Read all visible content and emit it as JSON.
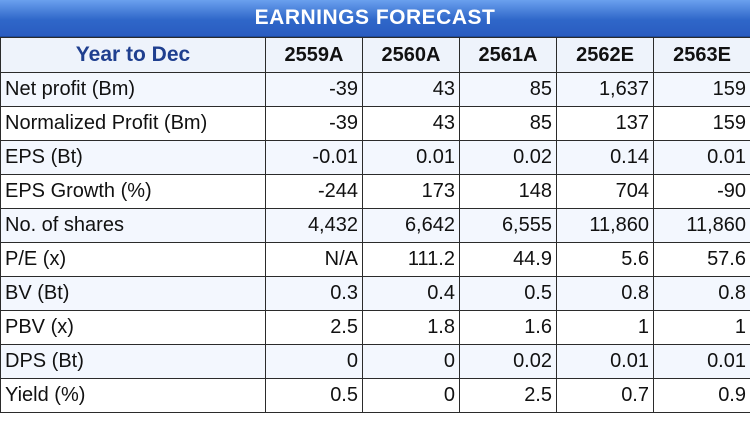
{
  "title": "EARNINGS FORECAST",
  "header": {
    "label": "Year to Dec",
    "years": [
      "2559A",
      "2560A",
      "2561A",
      "2562E",
      "2563E"
    ]
  },
  "rows": [
    {
      "label": "Net profit (Bm)",
      "values": [
        "-39",
        "43",
        "85",
        "1,637",
        "159"
      ]
    },
    {
      "label": "Normalized Profit (Bm)",
      "values": [
        "-39",
        "43",
        "85",
        "137",
        "159"
      ]
    },
    {
      "label": "EPS (Bt)",
      "values": [
        "-0.01",
        "0.01",
        "0.02",
        "0.14",
        "0.01"
      ]
    },
    {
      "label": "EPS Growth (%)",
      "values": [
        "-244",
        "173",
        "148",
        "704",
        "-90"
      ]
    },
    {
      "label": "No. of shares",
      "values": [
        "4,432",
        "6,642",
        "6,555",
        "11,860",
        "11,860"
      ]
    },
    {
      "label": "P/E (x)",
      "values": [
        "N/A",
        "111.2",
        "44.9",
        "5.6",
        "57.6"
      ]
    },
    {
      "label": "BV (Bt)",
      "values": [
        "0.3",
        "0.4",
        "0.5",
        "0.8",
        "0.8"
      ]
    },
    {
      "label": "PBV (x)",
      "values": [
        "2.5",
        "1.8",
        "1.6",
        "1",
        "1"
      ]
    },
    {
      "label": "DPS (Bt)",
      "values": [
        "0",
        "0",
        "0.02",
        "0.01",
        "0.01"
      ]
    },
    {
      "label": "Yield (%)",
      "values": [
        "0.5",
        "0",
        "2.5",
        "0.7",
        "0.9"
      ]
    }
  ]
}
